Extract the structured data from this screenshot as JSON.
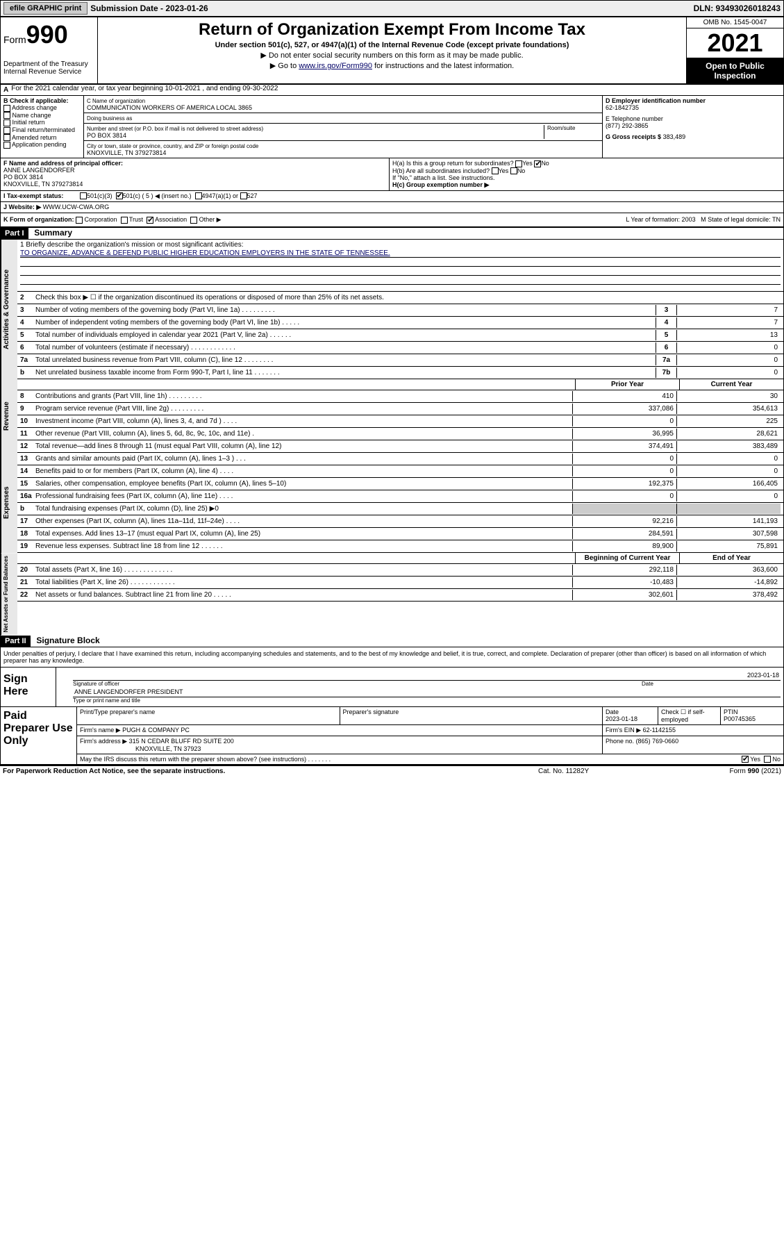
{
  "topbar": {
    "efile": "efile GRAPHIC print",
    "sub_label": "Submission Date - 2023-01-26",
    "dln": "DLN: 93493026018243"
  },
  "header": {
    "form": "Form",
    "form_no": "990",
    "dept": "Department of the Treasury\nInternal Revenue Service",
    "title": "Return of Organization Exempt From Income Tax",
    "sub1": "Under section 501(c), 527, or 4947(a)(1) of the Internal Revenue Code (except private foundations)",
    "sub2": "▶ Do not enter social security numbers on this form as it may be made public.",
    "sub3_pre": "▶ Go to ",
    "sub3_link": "www.irs.gov/Form990",
    "sub3_post": " for instructions and the latest information.",
    "omb": "OMB No. 1545-0047",
    "year": "2021",
    "open": "Open to Public Inspection"
  },
  "rowA": "For the 2021 calendar year, or tax year beginning 10-01-2021   , and ending 09-30-2022",
  "B": {
    "hdr": "B Check if applicable:",
    "items": [
      "Address change",
      "Name change",
      "Initial return",
      "Final return/terminated",
      "Amended return",
      "Application pending"
    ]
  },
  "C": {
    "lbl": "C Name of organization",
    "name": "COMMUNICATION WORKERS OF AMERICA LOCAL 3865",
    "dba_lbl": "Doing business as",
    "addr_lbl": "Number and street (or P.O. box if mail is not delivered to street address)",
    "room_lbl": "Room/suite",
    "addr": "PO BOX 3814",
    "city_lbl": "City or town, state or province, country, and ZIP or foreign postal code",
    "city": "KNOXVILLE, TN  379273814"
  },
  "D": {
    "lbl": "D Employer identification number",
    "val": "62-1842735"
  },
  "E": {
    "lbl": "E Telephone number",
    "val": "(877) 292-3865"
  },
  "G": {
    "lbl": "G Gross receipts $",
    "val": "383,489"
  },
  "F": {
    "lbl": "F Name and address of principal officer:",
    "name": "ANNE LANGENDORFER",
    "addr1": "PO BOX 3814",
    "addr2": "KNOXVILLE, TN  379273814"
  },
  "H": {
    "a": "H(a)  Is this a group return for subordinates?",
    "b": "H(b)  Are all subordinates included?",
    "b2": "If \"No,\" attach a list. See instructions.",
    "c": "H(c)  Group exemption number ▶",
    "yes": "Yes",
    "no": "No"
  },
  "I": {
    "lbl": "I   Tax-exempt status:",
    "c3": "501(c)(3)",
    "c5": "501(c) ( 5 ) ◀ (insert no.)",
    "a1": "4947(a)(1) or",
    "s527": "527"
  },
  "J": {
    "lbl": "J   Website: ▶",
    "val": "WWW.UCW-CWA.ORG"
  },
  "K": {
    "lbl": "K Form of organization:",
    "opts": [
      "Corporation",
      "Trust",
      "Association",
      "Other ▶"
    ],
    "L": "L Year of formation: 2003",
    "M": "M State of legal domicile: TN"
  },
  "partI": {
    "hdr": "Part I",
    "title": "Summary"
  },
  "brief": {
    "q": "1   Briefly describe the organization's mission or most significant activities:",
    "a": "TO ORGANIZE, ADVANCE & DEFEND PUBLIC HIGHER EDUCATION EMPLOYERS IN THE STATE OF TENNESSEE."
  },
  "gov_lines": [
    {
      "n": "2",
      "t": "Check this box ▶ ☐  if the organization discontinued its operations or disposed of more than 25% of its net assets."
    },
    {
      "n": "3",
      "t": "Number of voting members of the governing body (Part VI, line 1a)   .    .    .    .    .    .    .    .    .",
      "c": "3",
      "v": "7"
    },
    {
      "n": "4",
      "t": "Number of independent voting members of the governing body (Part VI, line 1b)   .    .    .    .    .",
      "c": "4",
      "v": "7"
    },
    {
      "n": "5",
      "t": "Total number of individuals employed in calendar year 2021 (Part V, line 2a)   .    .    .    .    .    .",
      "c": "5",
      "v": "13"
    },
    {
      "n": "6",
      "t": "Total number of volunteers (estimate if necessary)   .    .    .    .    .    .    .    .    .    .    .    .",
      "c": "6",
      "v": "0"
    },
    {
      "n": "7a",
      "t": "Total unrelated business revenue from Part VIII, column (C), line 12   .    .    .    .    .    .    .    .",
      "c": "7a",
      "v": "0"
    },
    {
      "n": "b",
      "t": "Net unrelated business taxable income from Form 990-T, Part I, line 11   .    .    .    .    .    .    .",
      "c": "7b",
      "v": "0"
    }
  ],
  "col_hdrs": {
    "py": "Prior Year",
    "cy": "Current Year",
    "bcy": "Beginning of Current Year",
    "eoy": "End of Year"
  },
  "rev_lines": [
    {
      "n": "8",
      "t": "Contributions and grants (Part VIII, line 1h)   .   .   .   .   .   .   .   .   .",
      "p": "410",
      "c": "30"
    },
    {
      "n": "9",
      "t": "Program service revenue (Part VIII, line 2g)   .   .   .   .   .   .   .   .   .",
      "p": "337,086",
      "c": "354,613"
    },
    {
      "n": "10",
      "t": "Investment income (Part VIII, column (A), lines 3, 4, and 7d )   .   .   .   .",
      "p": "0",
      "c": "225"
    },
    {
      "n": "11",
      "t": "Other revenue (Part VIII, column (A), lines 5, 6d, 8c, 9c, 10c, and 11e)   .",
      "p": "36,995",
      "c": "28,621"
    },
    {
      "n": "12",
      "t": "Total revenue—add lines 8 through 11 (must equal Part VIII, column (A), line 12)",
      "p": "374,491",
      "c": "383,489"
    }
  ],
  "exp_lines": [
    {
      "n": "13",
      "t": "Grants and similar amounts paid (Part IX, column (A), lines 1–3 )   .   .   .",
      "p": "0",
      "c": "0"
    },
    {
      "n": "14",
      "t": "Benefits paid to or for members (Part IX, column (A), line 4)   .   .   .   .",
      "p": "0",
      "c": "0"
    },
    {
      "n": "15",
      "t": "Salaries, other compensation, employee benefits (Part IX, column (A), lines 5–10)",
      "p": "192,375",
      "c": "166,405"
    },
    {
      "n": "16a",
      "t": "Professional fundraising fees (Part IX, column (A), line 11e)   .   .   .   .",
      "p": "0",
      "c": "0"
    },
    {
      "n": "b",
      "t": "Total fundraising expenses (Part IX, column (D), line 25) ▶0",
      "p": "",
      "c": "",
      "gray": true
    },
    {
      "n": "17",
      "t": "Other expenses (Part IX, column (A), lines 11a–11d, 11f–24e)   .   .   .   .",
      "p": "92,216",
      "c": "141,193"
    },
    {
      "n": "18",
      "t": "Total expenses. Add lines 13–17 (must equal Part IX, column (A), line 25)",
      "p": "284,591",
      "c": "307,598"
    },
    {
      "n": "19",
      "t": "Revenue less expenses. Subtract line 18 from line 12   .   .   .   .   .   .",
      "p": "89,900",
      "c": "75,891"
    }
  ],
  "na_lines": [
    {
      "n": "20",
      "t": "Total assets (Part X, line 16)   .   .   .   .   .   .   .   .   .   .   .   .   .",
      "p": "292,118",
      "c": "363,600"
    },
    {
      "n": "21",
      "t": "Total liabilities (Part X, line 26)   .   .   .   .   .   .   .   .   .   .   .   .",
      "p": "-10,483",
      "c": "-14,892"
    },
    {
      "n": "22",
      "t": "Net assets or fund balances. Subtract line 21 from line 20   .   .   .   .   .",
      "p": "302,601",
      "c": "378,492"
    }
  ],
  "side": {
    "gov": "Activities & Governance",
    "rev": "Revenue",
    "exp": "Expenses",
    "na": "Net Assets or\nFund Balances"
  },
  "partII": {
    "hdr": "Part II",
    "title": "Signature Block"
  },
  "decl": "Under penalties of perjury, I declare that I have examined this return, including accompanying schedules and statements, and to the best of my knowledge and belief, it is true, correct, and complete. Declaration of preparer (other than officer) is based on all information of which preparer has any knowledge.",
  "sign": {
    "here": "Sign Here",
    "sig_lbl": "Signature of officer",
    "date_lbl": "Date",
    "date": "2023-01-18",
    "name": "ANNE LANGENDORFER  PRESIDENT",
    "name_lbl": "Type or print name and title"
  },
  "prep": {
    "title": "Paid Preparer Use Only",
    "h1": "Print/Type preparer's name",
    "h2": "Preparer's signature",
    "h3": "Date",
    "h3v": "2023-01-18",
    "h4": "Check ☐ if self-employed",
    "h5": "PTIN",
    "h5v": "P00745365",
    "firm_lbl": "Firm's name   ▶",
    "firm": "PUGH & COMPANY PC",
    "ein_lbl": "Firm's EIN ▶",
    "ein": "62-1142155",
    "addr_lbl": "Firm's address ▶",
    "addr1": "315 N CEDAR BLUFF RD SUITE 200",
    "addr2": "KNOXVILLE, TN  37923",
    "ph_lbl": "Phone no.",
    "ph": "(865) 769-0660",
    "may": "May the IRS discuss this return with the preparer shown above? (see instructions)   .    .    .    .    .    .    .",
    "yes": "Yes",
    "no": "No"
  },
  "footer": {
    "pra": "For Paperwork Reduction Act Notice, see the separate instructions.",
    "cat": "Cat. No. 11282Y",
    "form": "Form 990 (2021)"
  },
  "colors": {
    "link": "#000066",
    "black": "#000000",
    "gray_bg": "#cccccc"
  }
}
